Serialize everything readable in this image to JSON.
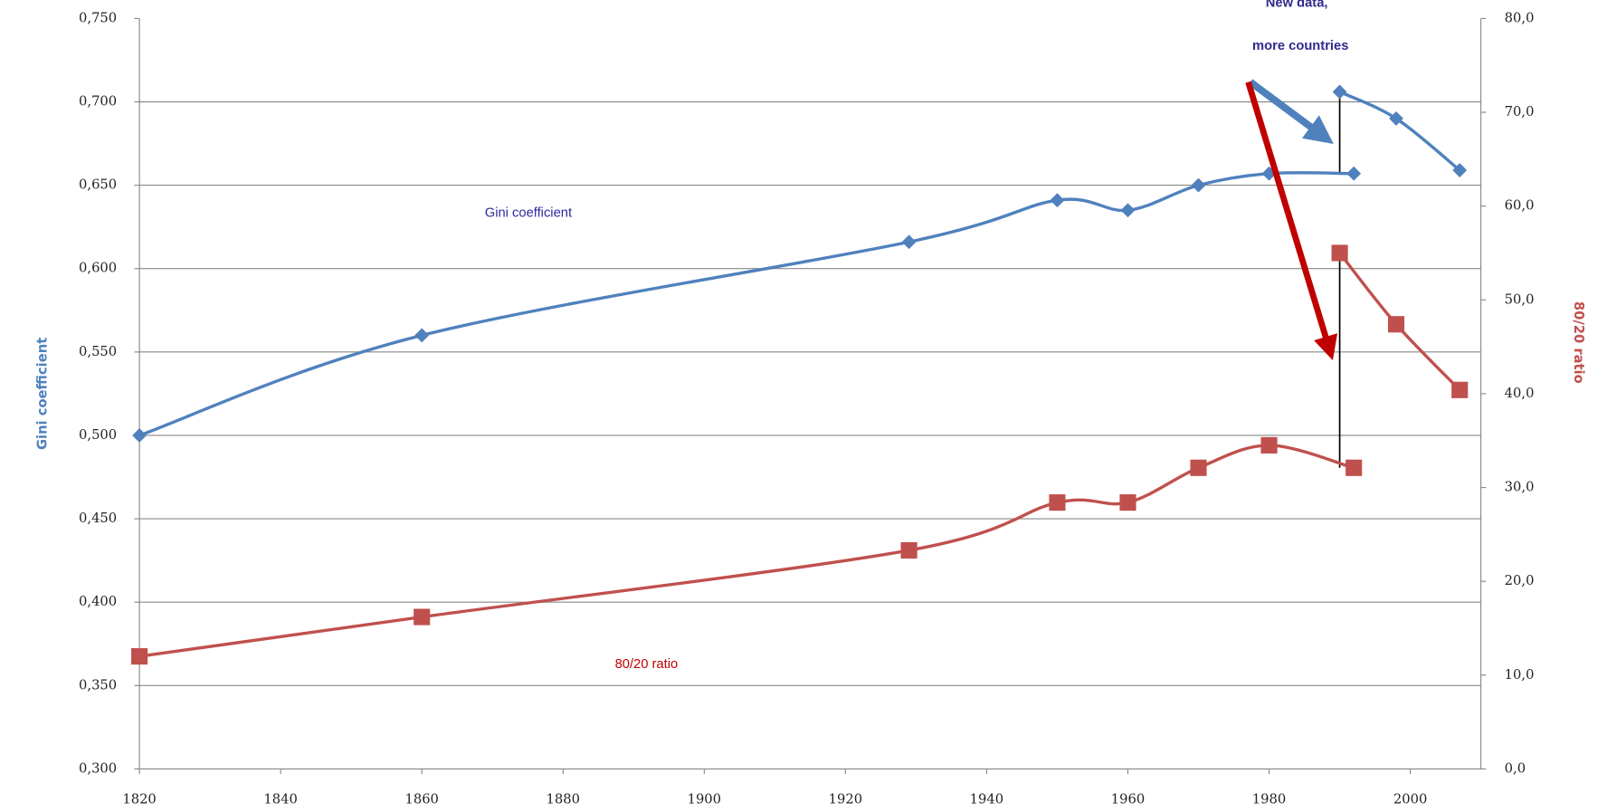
{
  "chart_data": {
    "type": "line",
    "y_label": "Gini coefficient",
    "y2_label": "80/20 ratio",
    "annotations": [
      "New data,",
      "more countries"
    ],
    "xlim": [
      1820,
      2010
    ],
    "xticks": [
      1820,
      1840,
      1860,
      1880,
      1900,
      1920,
      1940,
      1960,
      1980,
      2000
    ],
    "ylim": [
      0.3,
      0.75
    ],
    "yticks": [
      {
        "value": 0.3,
        "label": "0,300"
      },
      {
        "value": 0.35,
        "label": "0,350"
      },
      {
        "value": 0.4,
        "label": "0,400"
      },
      {
        "value": 0.45,
        "label": "0,450"
      },
      {
        "value": 0.5,
        "label": "0,500"
      },
      {
        "value": 0.55,
        "label": "0,550"
      },
      {
        "value": 0.6,
        "label": "0,600"
      },
      {
        "value": 0.65,
        "label": "0,650"
      },
      {
        "value": 0.7,
        "label": "0,700"
      },
      {
        "value": 0.75,
        "label": "0,750"
      }
    ],
    "y2lim": [
      0,
      80
    ],
    "y2ticks": [
      {
        "value": 0,
        "label": "0,0"
      },
      {
        "value": 10,
        "label": "10,0"
      },
      {
        "value": 20,
        "label": "20,0"
      },
      {
        "value": 30,
        "label": "30,0"
      },
      {
        "value": 40,
        "label": "40,0"
      },
      {
        "value": 50,
        "label": "50,0"
      },
      {
        "value": 60,
        "label": "60,0"
      },
      {
        "value": 70,
        "label": "70,0"
      },
      {
        "value": 80,
        "label": "80,0"
      }
    ],
    "grid": true,
    "series": [
      {
        "name": "Gini coefficient",
        "color": "#4f81bd",
        "marker": "diamond",
        "x": [
          1820,
          1860,
          1929,
          1950,
          1960,
          1970,
          1980,
          1992
        ],
        "values": [
          0.5,
          0.56,
          0.616,
          0.641,
          0.635,
          0.65,
          0.657,
          0.657
        ]
      },
      {
        "color": "#4f81bd",
        "marker": "diamond",
        "x": [
          1990,
          1998,
          2007
        ],
        "values": [
          0.706,
          0.69,
          0.659
        ]
      },
      {
        "name": "80/20 ratio",
        "color": "#c0504d",
        "marker": "square",
        "axis": "y2",
        "x": [
          1820,
          1860,
          1929,
          1950,
          1960,
          1970,
          1980,
          1992
        ],
        "values": [
          12.0,
          16.2,
          23.3,
          28.4,
          28.4,
          32.1,
          34.5,
          32.1
        ]
      },
      {
        "color": "#c0504d",
        "marker": "square",
        "axis": "y2",
        "x": [
          1990,
          1998,
          2007
        ],
        "values": [
          55.0,
          47.4,
          40.4
        ]
      }
    ]
  }
}
